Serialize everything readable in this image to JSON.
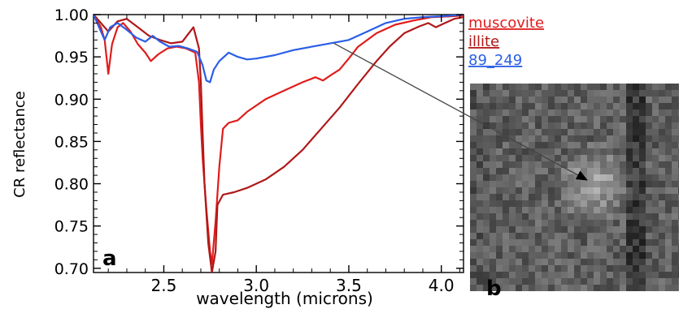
{
  "chart_data": {
    "type": "line",
    "xlabel": "wavelength  (microns)",
    "ylabel": "CR  reflectance",
    "xlim": [
      2.12,
      4.12
    ],
    "ylim": [
      0.695,
      1.0
    ],
    "x_ticks": [
      "2.5",
      "3.0",
      "3.5",
      "4.0"
    ],
    "x_tick_values": [
      2.5,
      3.0,
      3.5,
      4.0
    ],
    "y_ticks": [
      "1.00",
      "0.95",
      "0.90",
      "0.85",
      "0.80",
      "0.75",
      "0.70"
    ],
    "y_tick_values": [
      1.0,
      0.95,
      0.9,
      0.85,
      0.8,
      0.75,
      0.7
    ],
    "panel_label_a": "a",
    "panel_label_b": "b",
    "series": [
      {
        "name": "muscovite",
        "color": "#e01c1c",
        "values": [
          [
            2.12,
            1.0
          ],
          [
            2.16,
            0.985
          ],
          [
            2.18,
            0.97
          ],
          [
            2.2,
            0.93
          ],
          [
            2.22,
            0.965
          ],
          [
            2.25,
            0.985
          ],
          [
            2.28,
            0.99
          ],
          [
            2.32,
            0.98
          ],
          [
            2.36,
            0.965
          ],
          [
            2.4,
            0.955
          ],
          [
            2.43,
            0.945
          ],
          [
            2.47,
            0.953
          ],
          [
            2.52,
            0.96
          ],
          [
            2.57,
            0.962
          ],
          [
            2.62,
            0.96
          ],
          [
            2.67,
            0.955
          ],
          [
            2.69,
            0.92
          ],
          [
            2.7,
            0.87
          ],
          [
            2.71,
            0.83
          ],
          [
            2.73,
            0.77
          ],
          [
            2.75,
            0.72
          ],
          [
            2.76,
            0.705
          ],
          [
            2.78,
            0.755
          ],
          [
            2.8,
            0.82
          ],
          [
            2.82,
            0.865
          ],
          [
            2.85,
            0.872
          ],
          [
            2.9,
            0.875
          ],
          [
            2.95,
            0.885
          ],
          [
            3.05,
            0.9
          ],
          [
            3.15,
            0.91
          ],
          [
            3.25,
            0.92
          ],
          [
            3.32,
            0.926
          ],
          [
            3.36,
            0.922
          ],
          [
            3.4,
            0.928
          ],
          [
            3.45,
            0.935
          ],
          [
            3.5,
            0.948
          ],
          [
            3.55,
            0.962
          ],
          [
            3.65,
            0.978
          ],
          [
            3.75,
            0.988
          ],
          [
            3.85,
            0.993
          ],
          [
            3.95,
            0.997
          ],
          [
            4.05,
            0.998
          ],
          [
            4.12,
            0.999
          ]
        ]
      },
      {
        "name": "illite",
        "color": "#b01818",
        "values": [
          [
            2.12,
            1.0
          ],
          [
            2.16,
            0.99
          ],
          [
            2.2,
            0.98
          ],
          [
            2.25,
            0.992
          ],
          [
            2.3,
            0.995
          ],
          [
            2.36,
            0.985
          ],
          [
            2.42,
            0.975
          ],
          [
            2.48,
            0.97
          ],
          [
            2.54,
            0.966
          ],
          [
            2.6,
            0.968
          ],
          [
            2.66,
            0.985
          ],
          [
            2.69,
            0.96
          ],
          [
            2.7,
            0.92
          ],
          [
            2.71,
            0.86
          ],
          [
            2.72,
            0.8
          ],
          [
            2.74,
            0.73
          ],
          [
            2.76,
            0.695
          ],
          [
            2.78,
            0.72
          ],
          [
            2.79,
            0.775
          ],
          [
            2.82,
            0.787
          ],
          [
            2.88,
            0.79
          ],
          [
            2.95,
            0.795
          ],
          [
            3.05,
            0.805
          ],
          [
            3.15,
            0.82
          ],
          [
            3.25,
            0.84
          ],
          [
            3.35,
            0.865
          ],
          [
            3.45,
            0.89
          ],
          [
            3.55,
            0.918
          ],
          [
            3.65,
            0.945
          ],
          [
            3.72,
            0.962
          ],
          [
            3.8,
            0.978
          ],
          [
            3.88,
            0.986
          ],
          [
            3.93,
            0.99
          ],
          [
            3.97,
            0.985
          ],
          [
            4.02,
            0.99
          ],
          [
            4.07,
            0.995
          ],
          [
            4.12,
            0.997
          ]
        ]
      },
      {
        "name": "89_249",
        "color": "#2a5ee8",
        "values": [
          [
            2.12,
            1.0
          ],
          [
            2.15,
            0.985
          ],
          [
            2.18,
            0.97
          ],
          [
            2.21,
            0.985
          ],
          [
            2.25,
            0.99
          ],
          [
            2.3,
            0.982
          ],
          [
            2.35,
            0.973
          ],
          [
            2.4,
            0.968
          ],
          [
            2.44,
            0.975
          ],
          [
            2.48,
            0.968
          ],
          [
            2.53,
            0.962
          ],
          [
            2.58,
            0.963
          ],
          [
            2.63,
            0.96
          ],
          [
            2.68,
            0.956
          ],
          [
            2.71,
            0.94
          ],
          [
            2.73,
            0.922
          ],
          [
            2.75,
            0.92
          ],
          [
            2.77,
            0.935
          ],
          [
            2.8,
            0.945
          ],
          [
            2.85,
            0.955
          ],
          [
            2.9,
            0.95
          ],
          [
            2.95,
            0.947
          ],
          [
            3.0,
            0.948
          ],
          [
            3.1,
            0.952
          ],
          [
            3.2,
            0.958
          ],
          [
            3.3,
            0.962
          ],
          [
            3.4,
            0.966
          ],
          [
            3.5,
            0.97
          ],
          [
            3.6,
            0.98
          ],
          [
            3.7,
            0.99
          ],
          [
            3.8,
            0.995
          ],
          [
            3.9,
            0.997
          ],
          [
            4.0,
            0.998
          ],
          [
            4.12,
            1.0
          ]
        ]
      }
    ],
    "arrow_from_x": 3.42,
    "arrow_from_y": 0.966
  }
}
